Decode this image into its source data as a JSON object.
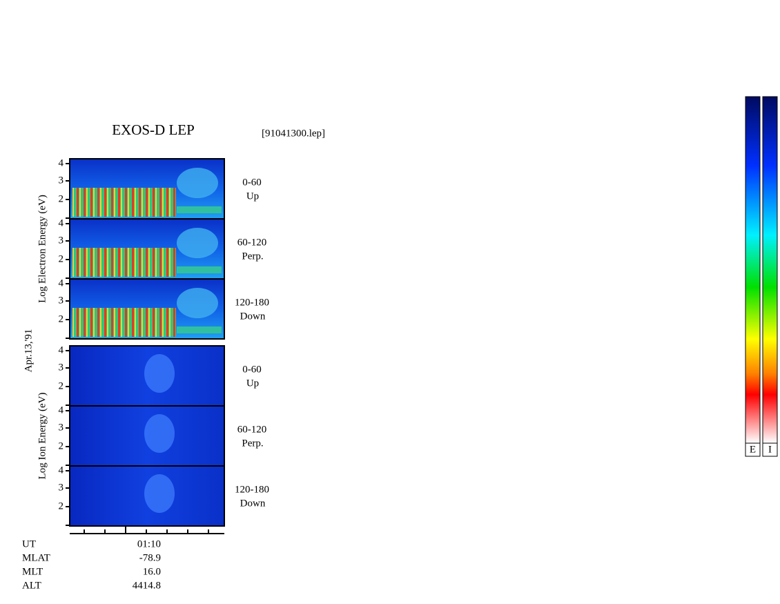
{
  "header": {
    "title": "EXOS-D LEP",
    "file": "[91041300.lep]"
  },
  "date": "Apr.13,'91",
  "groups": [
    {
      "axis_label": "Log Electron Energy (eV)",
      "panels": [
        {
          "yticks": [
            4,
            3,
            2
          ],
          "pitch": "0-60",
          "direction": "Up"
        },
        {
          "yticks": [
            4,
            3,
            2
          ],
          "pitch": "60-120",
          "direction": "Perp."
        },
        {
          "yticks": [
            4,
            3,
            2
          ],
          "pitch": "120-180",
          "direction": "Down"
        }
      ]
    },
    {
      "axis_label": "Log Ion Energy (eV)",
      "panels": [
        {
          "yticks": [
            4,
            3,
            2
          ],
          "pitch": "0-60",
          "direction": "Up"
        },
        {
          "yticks": [
            4,
            3,
            2
          ],
          "pitch": "60-120",
          "direction": "Perp."
        },
        {
          "yticks": [
            4,
            3,
            2
          ],
          "pitch": "120-180",
          "direction": "Down"
        }
      ]
    }
  ],
  "footer": {
    "rows": [
      {
        "label": "UT",
        "value": "01:10"
      },
      {
        "label": "MLAT",
        "value": "-78.9"
      },
      {
        "label": "MLT",
        "value": "16.0"
      },
      {
        "label": "ALT",
        "value": "4414.8"
      }
    ]
  },
  "colorbars": [
    "E",
    "I"
  ]
}
